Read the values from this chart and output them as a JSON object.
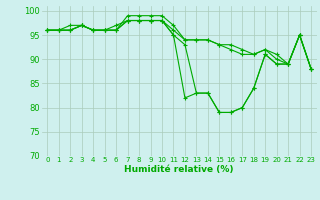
{
  "xlabel": "Humidité relative (%)",
  "xlim": [
    -0.5,
    23.5
  ],
  "ylim": [
    70,
    101
  ],
  "yticks": [
    70,
    75,
    80,
    85,
    90,
    95,
    100
  ],
  "xticks": [
    0,
    1,
    2,
    3,
    4,
    5,
    6,
    7,
    8,
    9,
    10,
    11,
    12,
    13,
    14,
    15,
    16,
    17,
    18,
    19,
    20,
    21,
    22,
    23
  ],
  "bg_color": "#cff0ee",
  "grid_color": "#aaccbb",
  "line_color": "#00aa00",
  "marker": "+",
  "series": [
    [
      96,
      96,
      96,
      97,
      96,
      96,
      96,
      99,
      99,
      99,
      99,
      97,
      94,
      94,
      94,
      93,
      93,
      92,
      91,
      92,
      91,
      89,
      95,
      88
    ],
    [
      96,
      96,
      97,
      97,
      96,
      96,
      97,
      98,
      98,
      98,
      98,
      96,
      94,
      94,
      94,
      93,
      92,
      91,
      91,
      92,
      90,
      89,
      95,
      88
    ],
    [
      96,
      96,
      96,
      97,
      96,
      96,
      96,
      98,
      98,
      98,
      98,
      95,
      93,
      83,
      83,
      79,
      79,
      80,
      84,
      91,
      89,
      89,
      95,
      88
    ],
    [
      96,
      96,
      96,
      97,
      96,
      96,
      96,
      98,
      98,
      98,
      98,
      95,
      82,
      83,
      83,
      79,
      79,
      80,
      84,
      91,
      89,
      89,
      95,
      88
    ]
  ],
  "xlabel_fontsize": 6.5,
  "ylabel_fontsize": 6,
  "xtick_fontsize": 5.0,
  "ytick_fontsize": 6.0,
  "linewidth": 0.8,
  "markersize": 2.5
}
